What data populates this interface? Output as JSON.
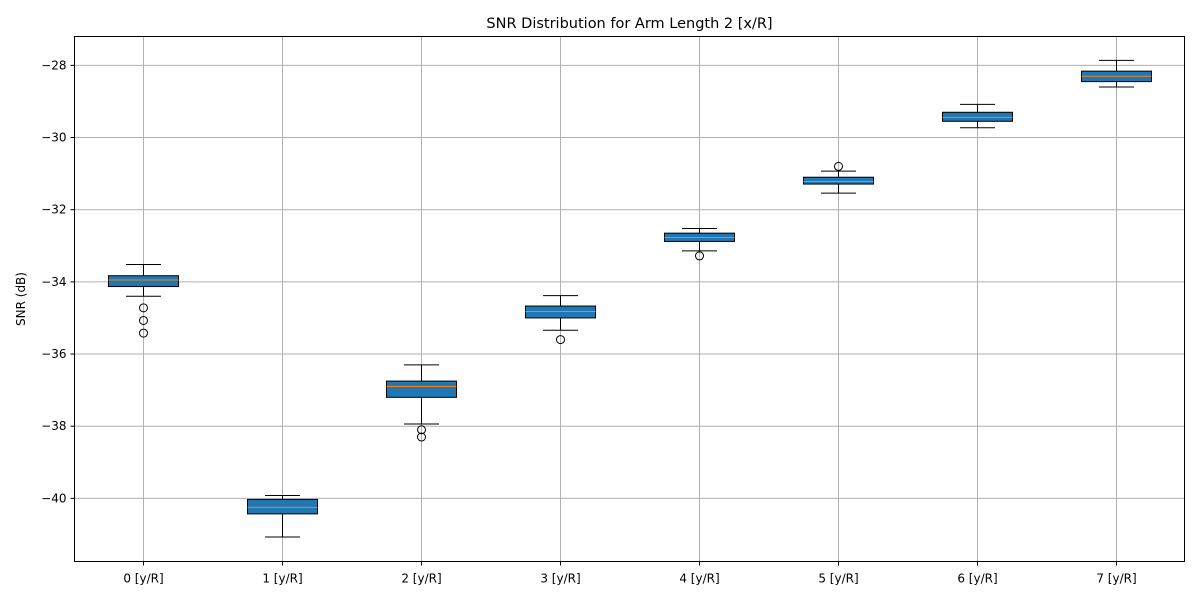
{
  "chart_data": {
    "type": "box",
    "title": "SNR Distribution for Arm Length 2 [x/R]",
    "xlabel": "",
    "ylabel": "SNR (dB)",
    "ylim": [
      -41.75,
      -27.2
    ],
    "yticks": [
      -40,
      -38,
      -36,
      -34,
      -32,
      -30,
      -28
    ],
    "ytick_labels": [
      "−40",
      "−38",
      "−36",
      "−34",
      "−32",
      "−30",
      "−28"
    ],
    "grid": true,
    "categories": [
      "0 [y/R]",
      "1 [y/R]",
      "2 [y/R]",
      "3 [y/R]",
      "4 [y/R]",
      "5 [y/R]",
      "6 [y/R]",
      "7 [y/R]"
    ],
    "boxes": [
      {
        "whisker_low": -34.4,
        "q1": -34.13,
        "median": -33.95,
        "q3": -33.83,
        "whisker_high": -33.52,
        "outliers": [
          -34.72,
          -35.07,
          -35.42
        ]
      },
      {
        "whisker_low": -41.07,
        "q1": -40.43,
        "median": -40.25,
        "q3": -40.03,
        "whisker_high": -39.92,
        "outliers": []
      },
      {
        "whisker_low": -37.94,
        "q1": -37.2,
        "median": -36.9,
        "q3": -36.75,
        "whisker_high": -36.3,
        "outliers": [
          -38.1,
          -38.3
        ]
      },
      {
        "whisker_low": -35.34,
        "q1": -35.0,
        "median": -34.82,
        "q3": -34.67,
        "whisker_high": -34.38,
        "outliers": [
          -35.6
        ]
      },
      {
        "whisker_low": -33.14,
        "q1": -32.88,
        "median": -32.77,
        "q3": -32.65,
        "whisker_high": -32.52,
        "outliers": [
          -33.28
        ]
      },
      {
        "whisker_low": -31.54,
        "q1": -31.29,
        "median": -31.22,
        "q3": -31.1,
        "whisker_high": -30.93,
        "outliers": [
          -30.8
        ]
      },
      {
        "whisker_low": -29.73,
        "q1": -29.55,
        "median": -29.44,
        "q3": -29.3,
        "whisker_high": -29.08,
        "outliers": []
      },
      {
        "whisker_low": -28.6,
        "q1": -28.45,
        "median": -28.3,
        "q3": -28.16,
        "whisker_high": -27.86,
        "outliers": []
      }
    ],
    "colors": {
      "box_fill": "#1f77b4",
      "median": "#ff7f0e",
      "edge": "#000000",
      "grid": "#b0b0b0"
    }
  }
}
